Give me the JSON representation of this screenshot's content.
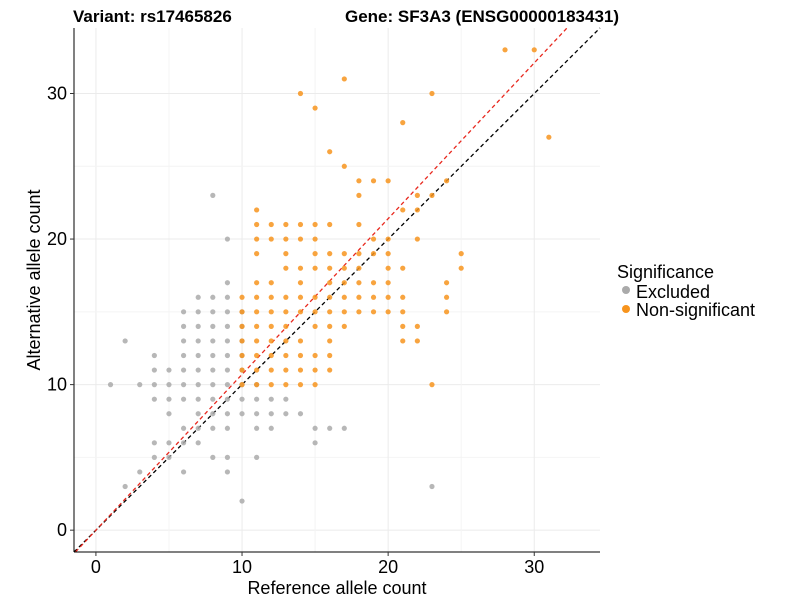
{
  "chart_data": {
    "type": "scatter",
    "title_left": "Variant: rs17465826",
    "title_right": "Gene: SF3A3 (ENSG00000183431)",
    "xlabel": "Reference allele count",
    "ylabel": "Alternative allele count",
    "xlim": [
      -1.5,
      34.5
    ],
    "ylim": [
      -1.5,
      34.5
    ],
    "xticks": [
      0,
      10,
      20,
      30
    ],
    "yticks": [
      0,
      10,
      20,
      30
    ],
    "grid": true,
    "legend": {
      "title": "Significance",
      "position": "right",
      "entries": [
        {
          "name": "Excluded",
          "color": "#aaaaaa"
        },
        {
          "name": "Non-significant",
          "color": "#f7941d"
        }
      ]
    },
    "reference_lines": [
      {
        "name": "identity",
        "slope": 1,
        "intercept": 0,
        "color": "#000000",
        "dash": true
      },
      {
        "name": "fit",
        "slope": 1.07,
        "intercept": 0,
        "color": "#e8281e",
        "dash": true
      }
    ],
    "series": [
      {
        "name": "Excluded",
        "color": "#aaaaaa",
        "points": [
          [
            1,
            10
          ],
          [
            2,
            13
          ],
          [
            2,
            3
          ],
          [
            3,
            10
          ],
          [
            3,
            4
          ],
          [
            4,
            12
          ],
          [
            4,
            11
          ],
          [
            4,
            10
          ],
          [
            4,
            9
          ],
          [
            4,
            6
          ],
          [
            4,
            5
          ],
          [
            5,
            11
          ],
          [
            5,
            10
          ],
          [
            5,
            9
          ],
          [
            5,
            8
          ],
          [
            5,
            6
          ],
          [
            5,
            5
          ],
          [
            6,
            15
          ],
          [
            6,
            14
          ],
          [
            6,
            13
          ],
          [
            6,
            12
          ],
          [
            6,
            11
          ],
          [
            6,
            10
          ],
          [
            6,
            9
          ],
          [
            6,
            7
          ],
          [
            6,
            6
          ],
          [
            6,
            4
          ],
          [
            7,
            16
          ],
          [
            7,
            15
          ],
          [
            7,
            14
          ],
          [
            7,
            13
          ],
          [
            7,
            12
          ],
          [
            7,
            11
          ],
          [
            7,
            10
          ],
          [
            7,
            9
          ],
          [
            7,
            8
          ],
          [
            7,
            7
          ],
          [
            7,
            6
          ],
          [
            8,
            23
          ],
          [
            8,
            16
          ],
          [
            8,
            15
          ],
          [
            8,
            14
          ],
          [
            8,
            13
          ],
          [
            8,
            12
          ],
          [
            8,
            11
          ],
          [
            8,
            10
          ],
          [
            8,
            9
          ],
          [
            8,
            8
          ],
          [
            8,
            7
          ],
          [
            8,
            5
          ],
          [
            9,
            20
          ],
          [
            9,
            17
          ],
          [
            9,
            16
          ],
          [
            9,
            15
          ],
          [
            9,
            14
          ],
          [
            9,
            13
          ],
          [
            9,
            12
          ],
          [
            9,
            11
          ],
          [
            9,
            10
          ],
          [
            9,
            9
          ],
          [
            9,
            8
          ],
          [
            9,
            7
          ],
          [
            9,
            5
          ],
          [
            9,
            4
          ],
          [
            10,
            15
          ],
          [
            10,
            14
          ],
          [
            10,
            13
          ],
          [
            10,
            12
          ],
          [
            10,
            11
          ],
          [
            10,
            10
          ],
          [
            10,
            9
          ],
          [
            10,
            8
          ],
          [
            10,
            2
          ],
          [
            11,
            10
          ],
          [
            11,
            9
          ],
          [
            11,
            8
          ],
          [
            11,
            7
          ],
          [
            11,
            5
          ],
          [
            12,
            9
          ],
          [
            12,
            8
          ],
          [
            12,
            7
          ],
          [
            13,
            9
          ],
          [
            13,
            8
          ],
          [
            14,
            8
          ],
          [
            15,
            7
          ],
          [
            15,
            6
          ],
          [
            16,
            7
          ],
          [
            17,
            7
          ],
          [
            23,
            3
          ]
        ]
      },
      {
        "name": "Non-significant",
        "color": "#f7941d",
        "points": [
          [
            10,
            16
          ],
          [
            10,
            15
          ],
          [
            10,
            14
          ],
          [
            10,
            13
          ],
          [
            10,
            12
          ],
          [
            10,
            11
          ],
          [
            10,
            10
          ],
          [
            11,
            22
          ],
          [
            11,
            21
          ],
          [
            11,
            20
          ],
          [
            11,
            19
          ],
          [
            11,
            17
          ],
          [
            11,
            16
          ],
          [
            11,
            15
          ],
          [
            11,
            14
          ],
          [
            11,
            13
          ],
          [
            11,
            12
          ],
          [
            11,
            11
          ],
          [
            11,
            10
          ],
          [
            12,
            21
          ],
          [
            12,
            20
          ],
          [
            12,
            17
          ],
          [
            12,
            16
          ],
          [
            12,
            15
          ],
          [
            12,
            14
          ],
          [
            12,
            13
          ],
          [
            12,
            12
          ],
          [
            12,
            11
          ],
          [
            12,
            10
          ],
          [
            13,
            21
          ],
          [
            13,
            20
          ],
          [
            13,
            19
          ],
          [
            13,
            18
          ],
          [
            13,
            16
          ],
          [
            13,
            15
          ],
          [
            13,
            14
          ],
          [
            13,
            13
          ],
          [
            13,
            12
          ],
          [
            13,
            11
          ],
          [
            13,
            10
          ],
          [
            14,
            30
          ],
          [
            14,
            21
          ],
          [
            14,
            20
          ],
          [
            14,
            18
          ],
          [
            14,
            17
          ],
          [
            14,
            16
          ],
          [
            14,
            15
          ],
          [
            14,
            13
          ],
          [
            14,
            12
          ],
          [
            14,
            11
          ],
          [
            14,
            10
          ],
          [
            15,
            29
          ],
          [
            15,
            21
          ],
          [
            15,
            20
          ],
          [
            15,
            19
          ],
          [
            15,
            18
          ],
          [
            15,
            16
          ],
          [
            15,
            15
          ],
          [
            15,
            14
          ],
          [
            15,
            12
          ],
          [
            15,
            11
          ],
          [
            15,
            10
          ],
          [
            16,
            26
          ],
          [
            16,
            21
          ],
          [
            16,
            19
          ],
          [
            16,
            18
          ],
          [
            16,
            17
          ],
          [
            16,
            16
          ],
          [
            16,
            15
          ],
          [
            16,
            14
          ],
          [
            16,
            13
          ],
          [
            16,
            12
          ],
          [
            16,
            11
          ],
          [
            17,
            31
          ],
          [
            17,
            25
          ],
          [
            17,
            19
          ],
          [
            17,
            18
          ],
          [
            17,
            17
          ],
          [
            17,
            16
          ],
          [
            17,
            15
          ],
          [
            17,
            14
          ],
          [
            18,
            24
          ],
          [
            18,
            23
          ],
          [
            18,
            21
          ],
          [
            18,
            19
          ],
          [
            18,
            18
          ],
          [
            18,
            17
          ],
          [
            18,
            16
          ],
          [
            18,
            15
          ],
          [
            19,
            24
          ],
          [
            19,
            20
          ],
          [
            19,
            19
          ],
          [
            19,
            17
          ],
          [
            19,
            16
          ],
          [
            19,
            15
          ],
          [
            20,
            24
          ],
          [
            20,
            20
          ],
          [
            20,
            19
          ],
          [
            20,
            18
          ],
          [
            20,
            17
          ],
          [
            20,
            16
          ],
          [
            20,
            15
          ],
          [
            21,
            28
          ],
          [
            21,
            22
          ],
          [
            21,
            18
          ],
          [
            21,
            16
          ],
          [
            21,
            15
          ],
          [
            21,
            14
          ],
          [
            21,
            13
          ],
          [
            22,
            23
          ],
          [
            22,
            22
          ],
          [
            22,
            20
          ],
          [
            22,
            14
          ],
          [
            22,
            13
          ],
          [
            23,
            30
          ],
          [
            23,
            23
          ],
          [
            23,
            10
          ],
          [
            24,
            24
          ],
          [
            24,
            17
          ],
          [
            24,
            16
          ],
          [
            24,
            15
          ],
          [
            25,
            19
          ],
          [
            25,
            18
          ],
          [
            28,
            33
          ],
          [
            30,
            33
          ],
          [
            31,
            27
          ]
        ]
      }
    ]
  }
}
